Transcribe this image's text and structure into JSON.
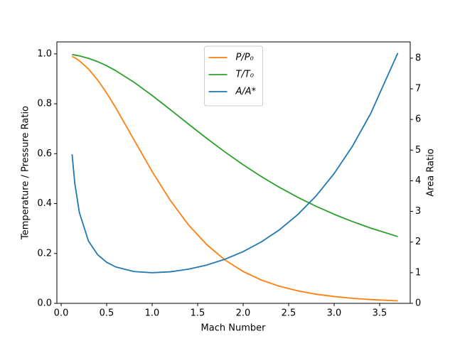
{
  "chart_data": {
    "type": "line",
    "xlabel": "Mach Number",
    "ylabel": "Temperature / Pressure Ratio",
    "y2label": "Area Ratio",
    "x": [
      0.12,
      0.15,
      0.2,
      0.3,
      0.4,
      0.5,
      0.6,
      0.8,
      1.0,
      1.2,
      1.4,
      1.6,
      1.8,
      2.0,
      2.2,
      2.4,
      2.6,
      2.8,
      3.0,
      3.2,
      3.4,
      3.7
    ],
    "series": [
      {
        "name": "P/P₀",
        "color": "#ff7f0e",
        "values": [
          0.99,
          0.9844,
          0.9725,
          0.9395,
          0.8956,
          0.843,
          0.784,
          0.656,
          0.5283,
          0.4124,
          0.3142,
          0.2353,
          0.174,
          0.1278,
          0.0935,
          0.0684,
          0.0501,
          0.0368,
          0.0272,
          0.0202,
          0.0151,
          0.0099
        ]
      },
      {
        "name": "T/T₀",
        "color": "#2ca02c",
        "values": [
          0.9971,
          0.9955,
          0.9921,
          0.9823,
          0.969,
          0.9524,
          0.9328,
          0.8865,
          0.8333,
          0.7764,
          0.7184,
          0.6614,
          0.6068,
          0.5556,
          0.5081,
          0.4647,
          0.4252,
          0.3894,
          0.3571,
          0.3281,
          0.3019,
          0.2675
        ]
      },
      {
        "name": "A/A*",
        "color": "#1f77b4",
        "axis": "y2",
        "values": [
          4.864,
          3.911,
          2.964,
          2.035,
          1.59,
          1.34,
          1.188,
          1.038,
          1.0,
          1.03,
          1.115,
          1.25,
          1.439,
          1.6875,
          2.005,
          2.403,
          2.896,
          3.5,
          4.235,
          5.121,
          6.184,
          8.169
        ]
      }
    ],
    "xlim": [
      -0.047,
      3.836
    ],
    "ylim": [
      0,
      1.048
    ],
    "y2lim": [
      0,
      8.53
    ],
    "xticks": [
      {
        "value": 0,
        "label": "0.0"
      },
      0.5,
      {
        "value": 1,
        "label": "1.0"
      },
      1.5,
      {
        "value": 2,
        "label": "2.0"
      },
      2.5,
      {
        "value": 3,
        "label": "3.0"
      },
      3.5
    ],
    "yticks": [
      {
        "value": 0,
        "label": "0.0"
      },
      0.2,
      0.4,
      0.6,
      0.8,
      {
        "value": 1,
        "label": "1.0"
      }
    ],
    "y2ticks": [
      0,
      1,
      2,
      3,
      4,
      5,
      6,
      7,
      8
    ],
    "legend": "upper center"
  }
}
